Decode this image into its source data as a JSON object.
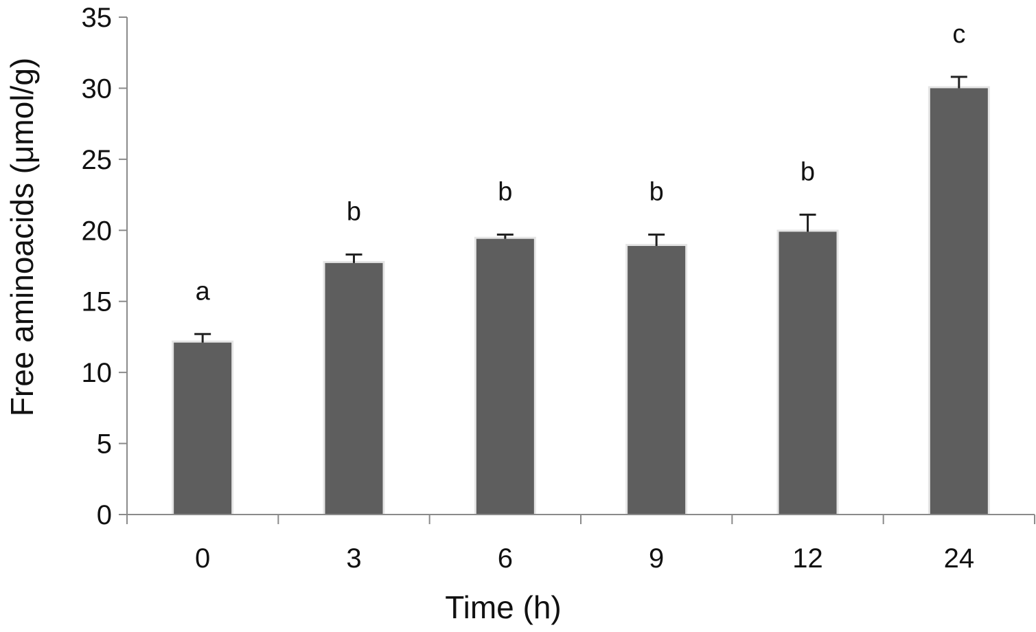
{
  "chart_data": {
    "type": "bar",
    "title": "",
    "xlabel": "Time (h)",
    "ylabel": "Free aminoacids (μmol/g)",
    "categories": [
      "0",
      "3",
      "6",
      "9",
      "12",
      "24"
    ],
    "values": [
      12.1,
      17.7,
      19.4,
      18.9,
      19.9,
      30.0
    ],
    "error_upper": [
      0.6,
      0.6,
      0.3,
      0.8,
      1.2,
      0.8
    ],
    "significance_letters": [
      "a",
      "b",
      "b",
      "b",
      "b",
      "c"
    ],
    "ylim": [
      0,
      35
    ],
    "yticks": [
      "0",
      "5",
      "10",
      "15",
      "20",
      "25",
      "30",
      "35"
    ],
    "grid": false,
    "legend": "none",
    "bar_color": "#5e5e5e",
    "axis_color": "#8a8a8a"
  }
}
